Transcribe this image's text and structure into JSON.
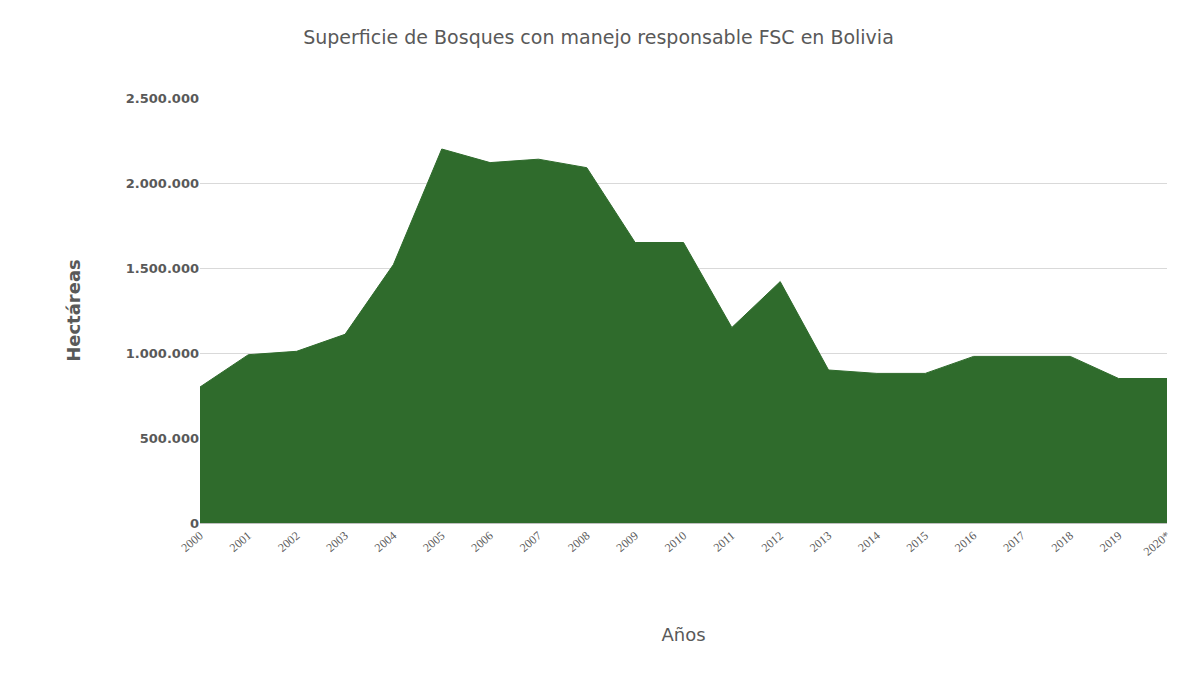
{
  "chart_data": {
    "type": "area",
    "title": "Superficie de Bosques con manejo responsable FSC en Bolivia",
    "x_label": "Años",
    "y_label": "Hectáreas",
    "categories": [
      "2000",
      "2001",
      "2002",
      "2003",
      "2004",
      "2005",
      "2006",
      "2007",
      "2008",
      "2009",
      "2010",
      "2011",
      "2012",
      "2013",
      "2014",
      "2015",
      "2016",
      "2017",
      "2018",
      "2019",
      "2020*"
    ],
    "values": [
      800000,
      990000,
      1010000,
      1110000,
      1520000,
      2200000,
      2120000,
      2140000,
      2090000,
      1650000,
      1650000,
      1150000,
      1420000,
      900000,
      880000,
      880000,
      980000,
      980000,
      980000,
      850000,
      850000
    ],
    "color": "#2f6b2c",
    "ylim": [
      0,
      2500000
    ],
    "yticks": [
      0,
      {
        "value": 500000,
        "label": "500.000"
      },
      {
        "value": 1000000,
        "label": "1.000.000"
      },
      {
        "value": 1500000,
        "label": "1.500.000"
      },
      {
        "value": 2000000,
        "label": "2.000.000"
      },
      {
        "value": 2500000,
        "label": "2.500.000"
      }
    ],
    "grid": true
  }
}
